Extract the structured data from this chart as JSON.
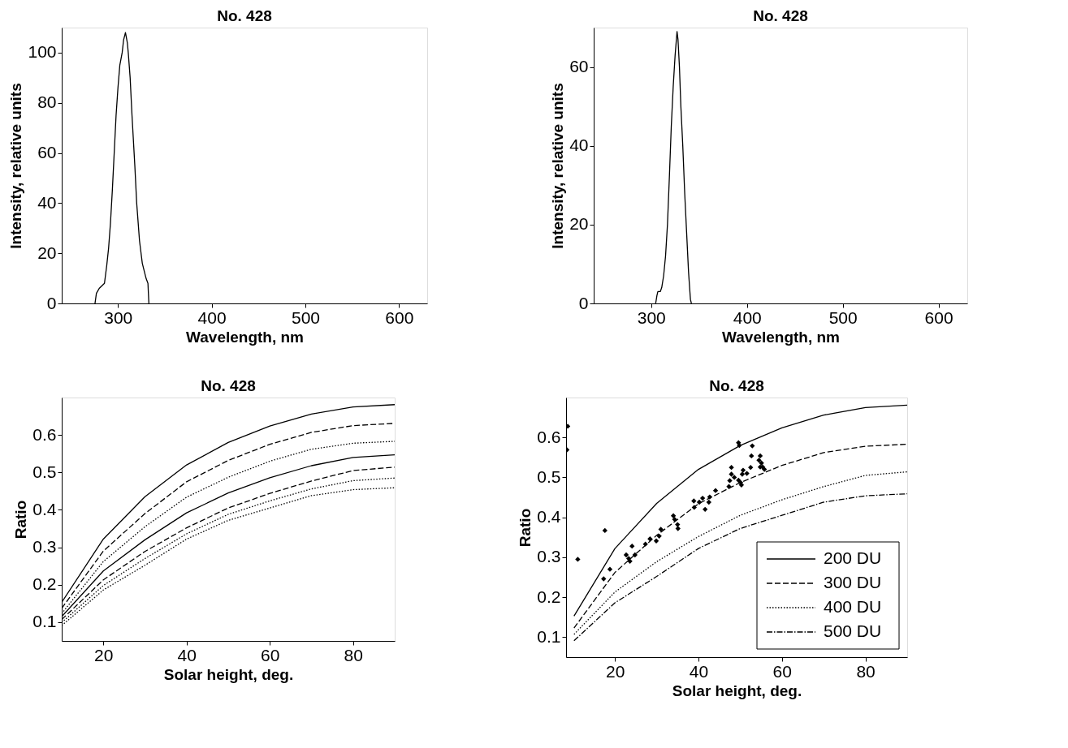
{
  "chart_data": [
    {
      "type": "line",
      "title": "No. 428",
      "xlabel": "Wavelength, nm",
      "ylabel": "Intensity, relative units",
      "xlim": [
        240,
        630
      ],
      "ylim": [
        0,
        110
      ],
      "xticks": [
        300,
        400,
        500,
        600
      ],
      "yticks": [
        0,
        20,
        40,
        60,
        80,
        100
      ],
      "line_style": "solid",
      "series": [
        {
          "color": "#000000",
          "x": [
            275.5,
            277,
            280,
            285.6,
            288,
            290,
            292,
            294,
            296,
            298,
            300,
            302,
            304.5,
            306,
            308,
            310,
            311,
            313,
            315,
            318,
            320,
            323,
            326,
            330,
            332,
            333
          ],
          "values": [
            0,
            4,
            6,
            8,
            15,
            22,
            32,
            45,
            60,
            75,
            86,
            95,
            100,
            105,
            108,
            104,
            100,
            90,
            75,
            55,
            40,
            25,
            16,
            10,
            8,
            0
          ]
        }
      ]
    },
    {
      "type": "line",
      "title": "No. 428",
      "xlabel": "Wavelength, nm",
      "ylabel": "Intensity, relative units",
      "xlim": [
        240,
        630
      ],
      "ylim": [
        0,
        70
      ],
      "xticks": [
        300,
        400,
        500,
        600
      ],
      "yticks": [
        0,
        20,
        40,
        60
      ],
      "line_style": "solid",
      "series": [
        {
          "color": "#000000",
          "x": [
            304.7,
            306,
            307,
            309.5,
            311,
            313,
            315,
            317,
            319,
            321,
            323,
            325,
            327,
            328,
            329.5,
            331,
            333,
            335,
            337,
            339,
            341,
            342
          ],
          "values": [
            0,
            2,
            3,
            3,
            4,
            7,
            12,
            20,
            32,
            45,
            55,
            63,
            69,
            67,
            60,
            50,
            40,
            28,
            18,
            8,
            1,
            0
          ]
        }
      ]
    },
    {
      "type": "line",
      "title": "No. 428",
      "xlabel": "Solar height, deg.",
      "ylabel": "Ratio",
      "xlim": [
        10,
        90
      ],
      "ylim": [
        0.05,
        0.7
      ],
      "xticks": [
        20,
        40,
        60,
        80
      ],
      "yticks": [
        0.1,
        0.2,
        0.3,
        0.4,
        0.5,
        0.6
      ],
      "series": [
        {
          "color": "#000000",
          "line_style": "solid",
          "x": [
            10,
            20,
            30,
            40,
            50,
            60,
            70,
            80,
            90
          ],
          "values": [
            0.153,
            0.322,
            0.435,
            0.52,
            0.58,
            0.624,
            0.656,
            0.675,
            0.681
          ]
        },
        {
          "color": "#000000",
          "line_style": "dashed",
          "x": [
            10,
            20,
            30,
            40,
            50,
            60,
            70,
            80,
            90
          ],
          "values": [
            0.137,
            0.29,
            0.39,
            0.475,
            0.532,
            0.575,
            0.607,
            0.625,
            0.631
          ]
        },
        {
          "color": "#000000",
          "line_style": "dotted",
          "x": [
            10,
            20,
            30,
            40,
            50,
            60,
            70,
            80,
            90
          ],
          "values": [
            0.123,
            0.262,
            0.355,
            0.434,
            0.487,
            0.53,
            0.562,
            0.578,
            0.583
          ]
        },
        {
          "color": "#000000",
          "line_style": "solid",
          "x": [
            10,
            20,
            30,
            40,
            50,
            60,
            70,
            80,
            90
          ],
          "values": [
            0.115,
            0.237,
            0.32,
            0.392,
            0.445,
            0.486,
            0.518,
            0.54,
            0.547
          ]
        },
        {
          "color": "#000000",
          "line_style": "dashed",
          "x": [
            10,
            20,
            30,
            40,
            50,
            60,
            70,
            80,
            90
          ],
          "values": [
            0.107,
            0.213,
            0.289,
            0.352,
            0.405,
            0.444,
            0.477,
            0.505,
            0.514
          ]
        },
        {
          "color": "#000000",
          "line_style": "dotted",
          "x": [
            10,
            20,
            30,
            40,
            50,
            60,
            70,
            80,
            90
          ],
          "values": [
            0.099,
            0.198,
            0.27,
            0.336,
            0.388,
            0.424,
            0.456,
            0.478,
            0.485
          ]
        },
        {
          "color": "#000000",
          "line_style": "dotted",
          "x": [
            10,
            20,
            30,
            40,
            50,
            60,
            70,
            80,
            90
          ],
          "values": [
            0.091,
            0.186,
            0.252,
            0.322,
            0.372,
            0.405,
            0.438,
            0.454,
            0.459
          ]
        }
      ]
    },
    {
      "type": "line",
      "title": "No. 428",
      "xlabel": "Solar height, deg.",
      "ylabel": "Ratio",
      "xlim": [
        8.3,
        90
      ],
      "ylim": [
        0.05,
        0.7
      ],
      "xticks": [
        20,
        40,
        60,
        80
      ],
      "yticks": [
        0.1,
        0.2,
        0.3,
        0.4,
        0.5,
        0.6
      ],
      "legend": "bottom right",
      "series": [
        {
          "name": "200 DU",
          "color": "#000000",
          "line_style": "solid",
          "x": [
            10.2,
            20,
            30,
            40,
            50,
            60,
            70,
            80,
            90
          ],
          "values": [
            0.153,
            0.322,
            0.435,
            0.52,
            0.58,
            0.624,
            0.656,
            0.675,
            0.681
          ]
        },
        {
          "name": "300 DU",
          "color": "#000000",
          "line_style": "dashed",
          "x": [
            10.2,
            20,
            30,
            40,
            50,
            60,
            70,
            80,
            90
          ],
          "values": [
            0.123,
            0.262,
            0.355,
            0.434,
            0.487,
            0.53,
            0.562,
            0.578,
            0.583
          ]
        },
        {
          "name": "400 DU",
          "color": "#000000",
          "line_style": "dotted",
          "x": [
            10.2,
            20,
            30,
            40,
            50,
            60,
            70,
            80,
            90
          ],
          "values": [
            0.107,
            0.213,
            0.289,
            0.352,
            0.405,
            0.444,
            0.477,
            0.505,
            0.514
          ]
        },
        {
          "name": "500 DU",
          "color": "#000000",
          "line_style": "dashdot",
          "x": [
            10.2,
            20,
            30,
            40,
            50,
            60,
            70,
            80,
            90
          ],
          "values": [
            0.091,
            0.186,
            0.252,
            0.322,
            0.372,
            0.405,
            0.438,
            0.454,
            0.459
          ]
        },
        {
          "type": "scatter",
          "marker": "diamond",
          "color": "#000000",
          "x": [
            8.7,
            8.5,
            11.1,
            17.6,
            17.3,
            18.8,
            22.7,
            23.3,
            23.6,
            24.1,
            24.8,
            27.3,
            28.4,
            29.9,
            31.0,
            30.6,
            34.0,
            34.3,
            35.0,
            35.1,
            38.9,
            39.0,
            40.2,
            41.0,
            41.6,
            42.5,
            42.7,
            44.1,
            47.3,
            47.5,
            47.9,
            47.9,
            48.6,
            49.6,
            50.1,
            50.3,
            49.6,
            49.8,
            50.5,
            50.7,
            51.6,
            52.5,
            52.7,
            52.9,
            54.8,
            54.5,
            55.1,
            55.4,
            54.8,
            55.8
          ],
          "values": [
            0.628,
            0.569,
            0.295,
            0.367,
            0.246,
            0.27,
            0.306,
            0.297,
            0.29,
            0.328,
            0.306,
            0.333,
            0.346,
            0.341,
            0.37,
            0.353,
            0.404,
            0.395,
            0.382,
            0.372,
            0.441,
            0.425,
            0.438,
            0.448,
            0.42,
            0.438,
            0.451,
            0.467,
            0.477,
            0.492,
            0.508,
            0.525,
            0.5,
            0.493,
            0.487,
            0.481,
            0.587,
            0.58,
            0.508,
            0.518,
            0.51,
            0.525,
            0.554,
            0.579,
            0.554,
            0.543,
            0.536,
            0.526,
            0.526,
            0.52
          ]
        }
      ]
    }
  ]
}
